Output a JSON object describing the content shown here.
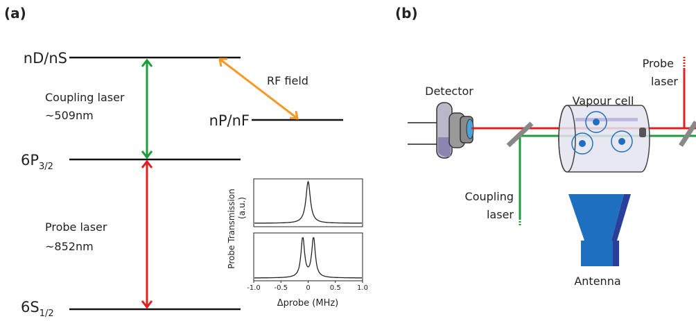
{
  "panel_a": {
    "label": "(a)",
    "levels": [
      {
        "label": "nD/nS"
      },
      {
        "label": "nP/nF"
      },
      {
        "label": "6P",
        "sub": "3/2"
      },
      {
        "label": "6S",
        "sub": "1/2"
      }
    ],
    "coupling_laser": [
      "Coupling laser",
      "~509nm"
    ],
    "probe_laser": [
      "Probe laser",
      "~852nm"
    ],
    "rf_field": "RF field",
    "inset": {
      "y_label": [
        "Probe Transmission",
        "(a.u.)"
      ],
      "x_label": "Δprobe (MHz)",
      "xticks": [
        "-1.0",
        "-0.5",
        "0",
        "0.5",
        "1.0"
      ]
    }
  },
  "panel_b": {
    "label": "(b)",
    "detector": "Detector",
    "vapour_cell": "Vapour cell",
    "probe_laser": [
      "Probe",
      "laser"
    ],
    "coupling_laser": [
      "Coupling",
      "laser"
    ],
    "antenna": "Antenna"
  }
}
